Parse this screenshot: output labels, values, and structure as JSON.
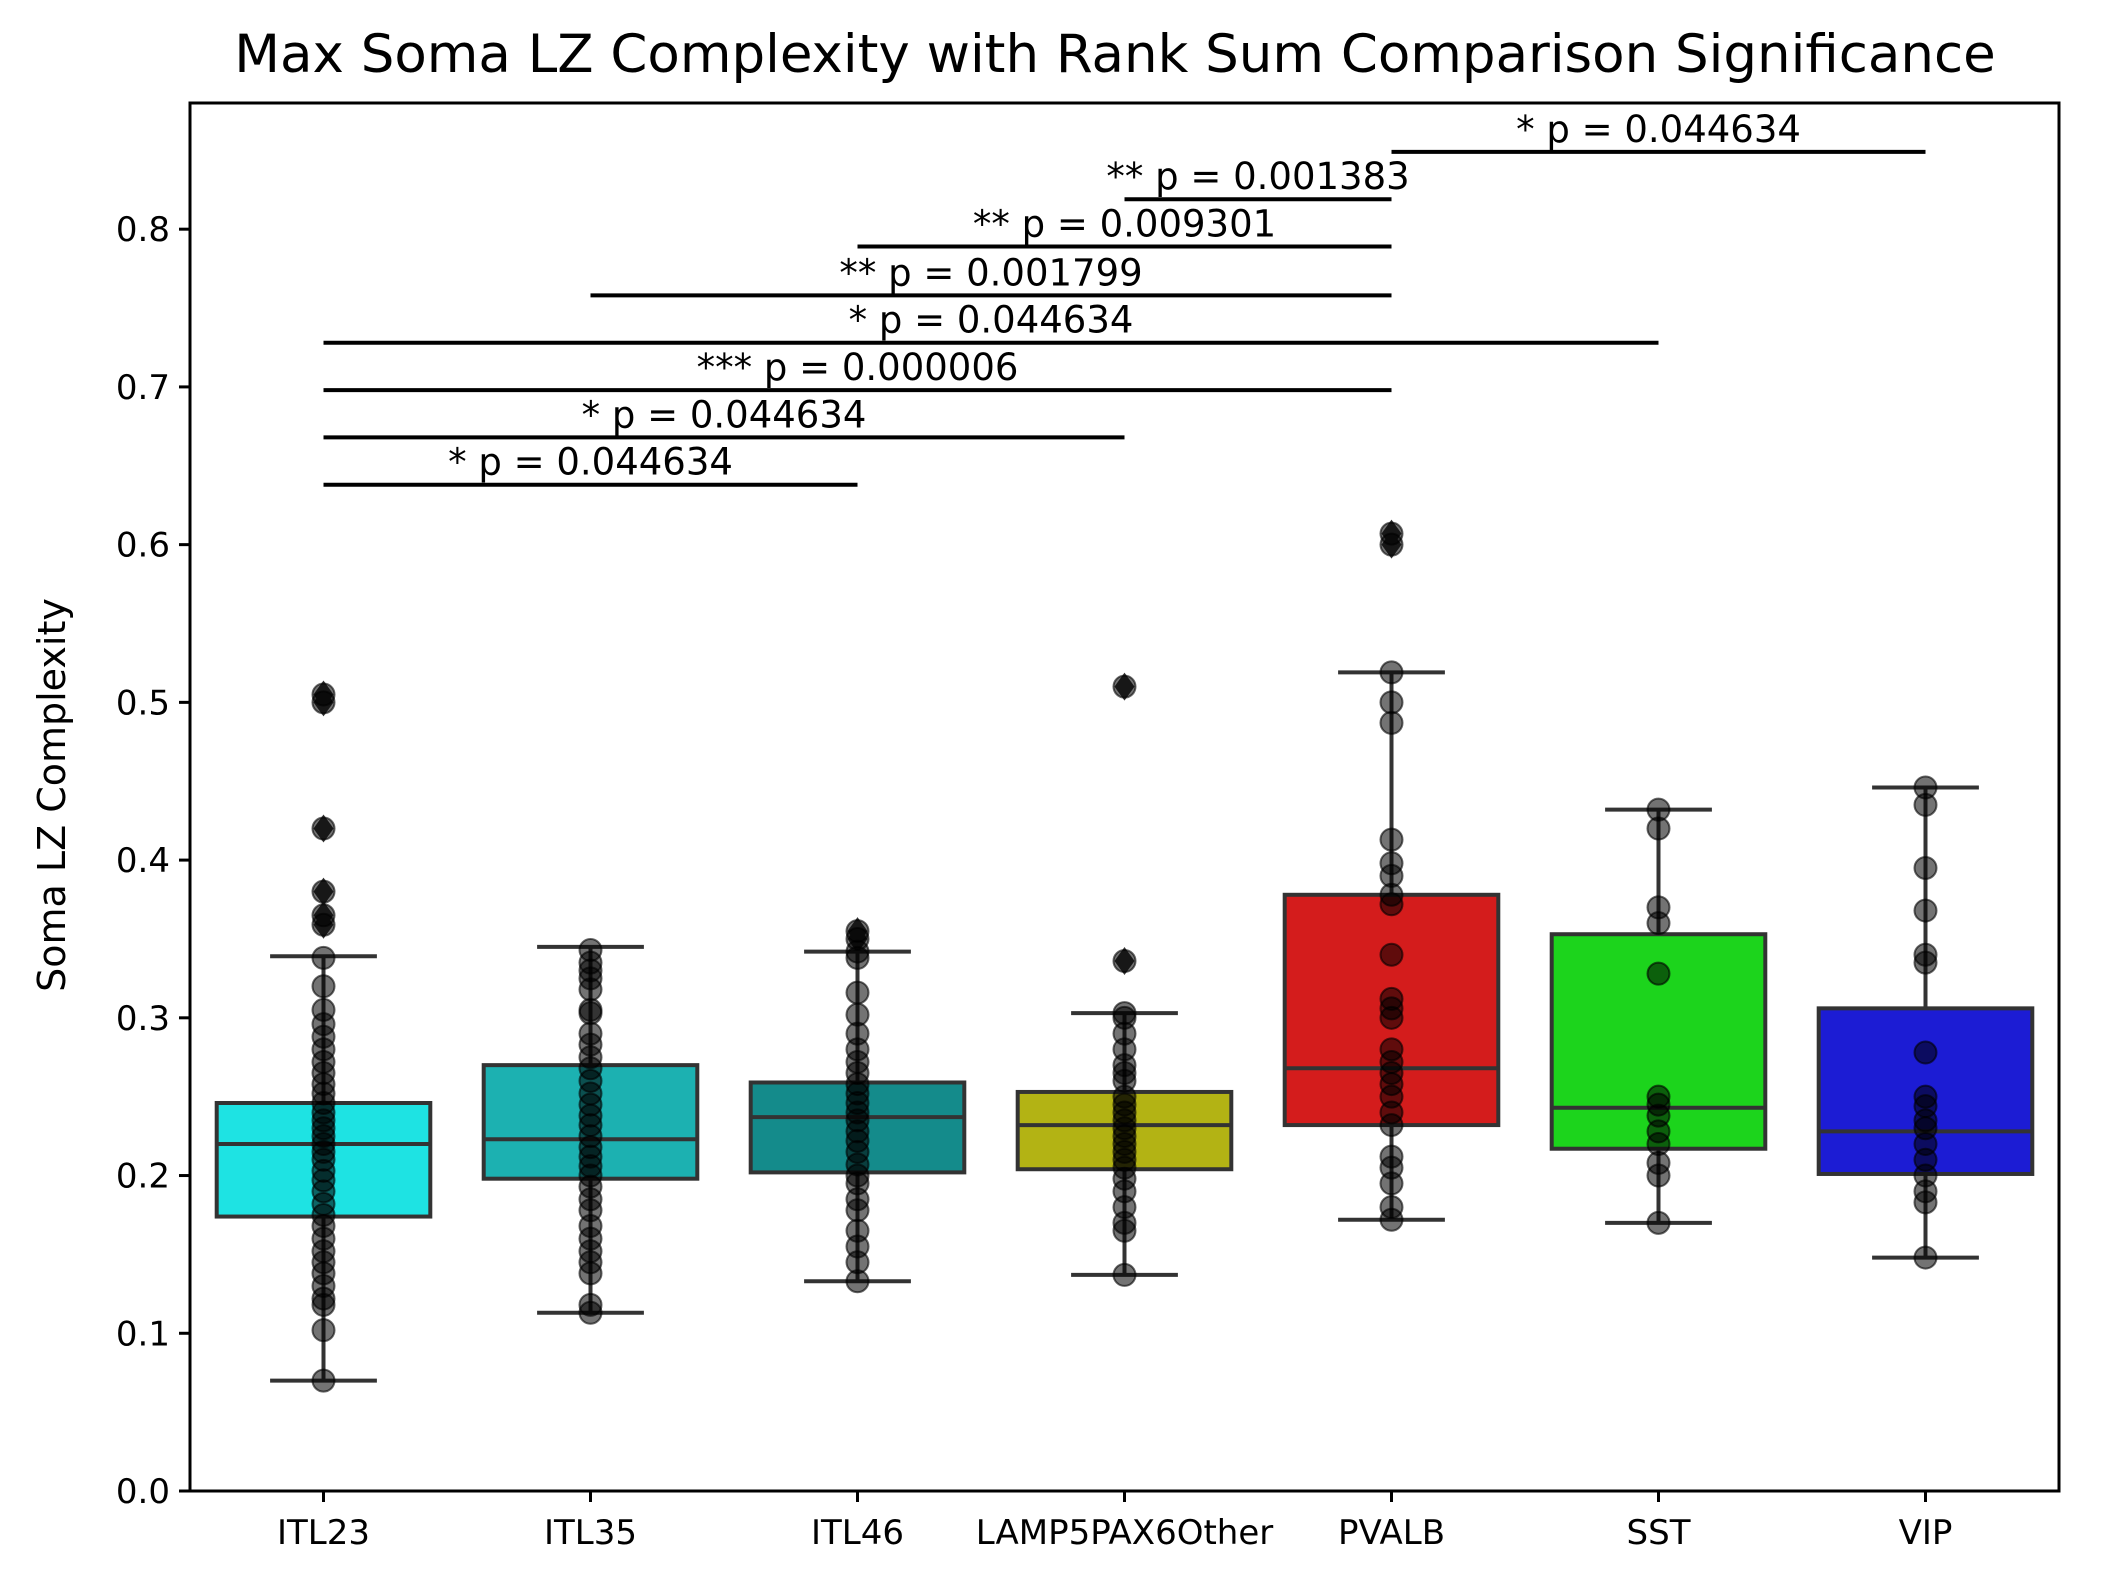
{
  "chart_data": {
    "type": "box",
    "title": "Max Soma LZ Complexity with Rank Sum Comparison Significance",
    "xlabel": "",
    "ylabel": "Soma LZ Complexity",
    "ylim": [
      0.0,
      0.88
    ],
    "yticks": [
      {
        "value": 0.0,
        "label": "0.0"
      },
      {
        "value": 0.1,
        "label": "0.1"
      },
      {
        "value": 0.2,
        "label": "0.2"
      },
      {
        "value": 0.3,
        "label": "0.3"
      },
      {
        "value": 0.4,
        "label": "0.4"
      },
      {
        "value": 0.5,
        "label": "0.5"
      },
      {
        "value": 0.6,
        "label": "0.6"
      },
      {
        "value": 0.7,
        "label": "0.7"
      },
      {
        "value": 0.8,
        "label": "0.8"
      }
    ],
    "grid": false,
    "categories": [
      "ITL23",
      "ITL35",
      "ITL46",
      "LAMP5PAX6Other",
      "PVALB",
      "SST",
      "VIP"
    ],
    "boxes": [
      {
        "category": "ITL23",
        "color": "#1ee3e3",
        "whisker_low": 0.07,
        "q1": 0.174,
        "median": 0.22,
        "q3": 0.246,
        "whisker_high": 0.339,
        "outliers": [
          0.359,
          0.365,
          0.38,
          0.42,
          0.5,
          0.505
        ],
        "points": [
          0.07,
          0.102,
          0.118,
          0.122,
          0.13,
          0.138,
          0.145,
          0.152,
          0.16,
          0.168,
          0.175,
          0.182,
          0.19,
          0.197,
          0.203,
          0.21,
          0.215,
          0.22,
          0.225,
          0.23,
          0.235,
          0.24,
          0.246,
          0.252,
          0.258,
          0.265,
          0.272,
          0.28,
          0.288,
          0.296,
          0.305,
          0.32,
          0.338,
          0.359,
          0.365,
          0.38,
          0.42,
          0.5,
          0.505
        ]
      },
      {
        "category": "ITL35",
        "color": "#1cb1b1",
        "whisker_low": 0.113,
        "q1": 0.198,
        "median": 0.223,
        "q3": 0.27,
        "whisker_high": 0.345,
        "outliers": [],
        "points": [
          0.113,
          0.118,
          0.138,
          0.145,
          0.152,
          0.16,
          0.168,
          0.178,
          0.185,
          0.193,
          0.2,
          0.206,
          0.212,
          0.218,
          0.225,
          0.232,
          0.238,
          0.245,
          0.252,
          0.26,
          0.268,
          0.275,
          0.283,
          0.29,
          0.303,
          0.305,
          0.318,
          0.325,
          0.33,
          0.335,
          0.343
        ]
      },
      {
        "category": "ITL46",
        "color": "#148b8b",
        "whisker_low": 0.133,
        "q1": 0.202,
        "median": 0.237,
        "q3": 0.259,
        "whisker_high": 0.342,
        "outliers": [
          0.35,
          0.355
        ],
        "points": [
          0.133,
          0.145,
          0.155,
          0.165,
          0.178,
          0.185,
          0.195,
          0.2,
          0.207,
          0.215,
          0.222,
          0.228,
          0.235,
          0.24,
          0.246,
          0.252,
          0.258,
          0.265,
          0.272,
          0.28,
          0.29,
          0.302,
          0.316,
          0.338,
          0.342,
          0.35,
          0.355
        ]
      },
      {
        "category": "LAMP5PAX6Other",
        "color": "#b3b314",
        "whisker_low": 0.137,
        "q1": 0.204,
        "median": 0.232,
        "q3": 0.253,
        "whisker_high": 0.303,
        "outliers": [
          0.336,
          0.51
        ],
        "points": [
          0.137,
          0.165,
          0.17,
          0.18,
          0.19,
          0.198,
          0.205,
          0.21,
          0.215,
          0.22,
          0.225,
          0.23,
          0.235,
          0.24,
          0.245,
          0.25,
          0.26,
          0.265,
          0.27,
          0.28,
          0.29,
          0.3,
          0.303,
          0.336,
          0.51
        ]
      },
      {
        "category": "PVALB",
        "color": "#d41c1c",
        "whisker_low": 0.172,
        "q1": 0.232,
        "median": 0.268,
        "q3": 0.378,
        "whisker_high": 0.519,
        "outliers": [
          0.6,
          0.607
        ],
        "points": [
          0.172,
          0.18,
          0.195,
          0.205,
          0.212,
          0.232,
          0.24,
          0.25,
          0.258,
          0.265,
          0.272,
          0.28,
          0.3,
          0.306,
          0.312,
          0.34,
          0.372,
          0.378,
          0.39,
          0.398,
          0.413,
          0.487,
          0.5,
          0.519,
          0.6,
          0.607
        ]
      },
      {
        "category": "SST",
        "color": "#1cd41c",
        "whisker_low": 0.17,
        "q1": 0.217,
        "median": 0.243,
        "q3": 0.353,
        "whisker_high": 0.432,
        "outliers": [],
        "points": [
          0.17,
          0.2,
          0.208,
          0.22,
          0.228,
          0.238,
          0.245,
          0.25,
          0.328,
          0.36,
          0.37,
          0.42,
          0.432
        ]
      },
      {
        "category": "VIP",
        "color": "#1c1cd4",
        "whisker_low": 0.148,
        "q1": 0.201,
        "median": 0.228,
        "q3": 0.306,
        "whisker_high": 0.446,
        "outliers": [],
        "points": [
          0.148,
          0.183,
          0.19,
          0.2,
          0.21,
          0.22,
          0.23,
          0.235,
          0.244,
          0.25,
          0.278,
          0.335,
          0.34,
          0.368,
          0.395,
          0.435,
          0.446
        ]
      }
    ],
    "significance": [
      {
        "from": "ITL23",
        "to": "ITL46",
        "y": 0.638,
        "label": "* p = 0.044634"
      },
      {
        "from": "ITL23",
        "to": "LAMP5PAX6Other",
        "y": 0.668,
        "label": "* p = 0.044634"
      },
      {
        "from": "ITL23",
        "to": "PVALB",
        "y": 0.698,
        "label": "*** p = 0.000006"
      },
      {
        "from": "ITL23",
        "to": "SST",
        "y": 0.728,
        "label": "* p = 0.044634"
      },
      {
        "from": "ITL35",
        "to": "PVALB",
        "y": 0.758,
        "label": "** p = 0.001799"
      },
      {
        "from": "ITL46",
        "to": "PVALB",
        "y": 0.789,
        "label": "** p = 0.009301"
      },
      {
        "from": "LAMP5PAX6Other",
        "to": "PVALB",
        "y": 0.819,
        "label": "** p = 0.001383"
      },
      {
        "from": "PVALB",
        "to": "VIP",
        "y": 0.849,
        "label": "* p = 0.044634"
      }
    ]
  }
}
